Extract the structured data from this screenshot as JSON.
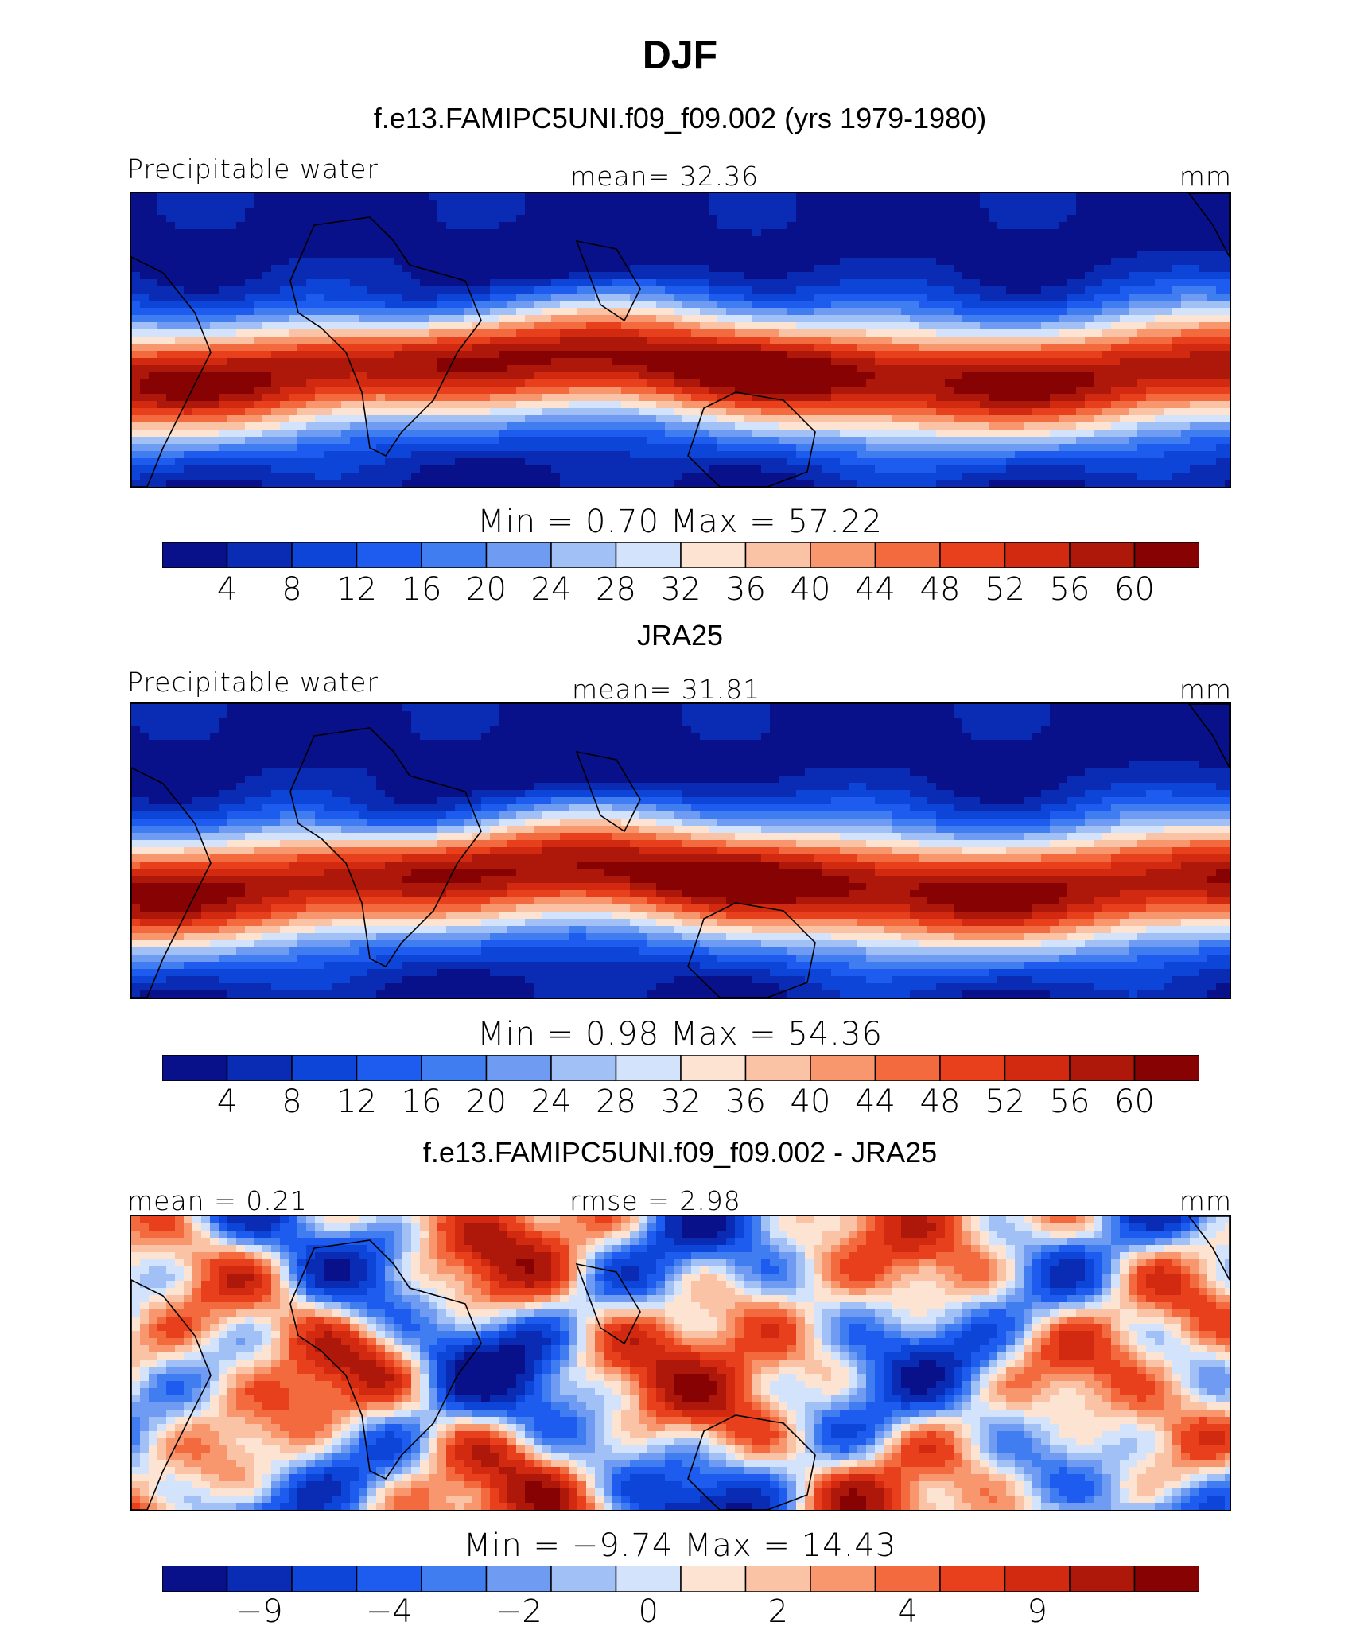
{
  "figure": {
    "title": "DJF"
  },
  "palette": [
    "#08108a",
    "#0a2cb5",
    "#0d45d8",
    "#1e5cef",
    "#3f7df1",
    "#6f9cf2",
    "#a1c0f5",
    "#d2e3fb",
    "#fde3d1",
    "#fbc3a6",
    "#f8976e",
    "#f36a3f",
    "#e8401d",
    "#d12a10",
    "#ad180a",
    "#870303"
  ],
  "panels": [
    {
      "id": "model",
      "subtitle": "f.e13.FAMIPC5UNI.f09_f09.002 (yrs 1979-1980)",
      "left_label": "Precipitable water",
      "center_label": "mean=  32.36",
      "units": "mm",
      "minmax": "Min =   0.70 Max =  57.22",
      "colorbar_ticks": [
        "4",
        "8",
        "12",
        "16",
        "20",
        "24",
        "28",
        "32",
        "36",
        "40",
        "44",
        "48",
        "52",
        "56",
        "60"
      ],
      "field_style": "abs"
    },
    {
      "id": "obs",
      "subtitle": "JRA25",
      "left_label": "Precipitable water",
      "center_label": "mean=  31.81",
      "units": "mm",
      "minmax": "Min =   0.98 Max =  54.36",
      "colorbar_ticks": [
        "4",
        "8",
        "12",
        "16",
        "20",
        "24",
        "28",
        "32",
        "36",
        "40",
        "44",
        "48",
        "52",
        "56",
        "60"
      ],
      "field_style": "abs"
    },
    {
      "id": "diff",
      "subtitle": "f.e13.FAMIPC5UNI.f09_f09.002 - JRA25",
      "left_label": "mean =   0.21",
      "center_label": "rmse =   2.98",
      "units": "mm",
      "minmax": "Min =  −9.74 Max =  14.43",
      "colorbar_ticks": [
        "−9",
        "",
        "−4",
        "",
        "−2",
        "",
        "0",
        "",
        "2",
        "",
        "4",
        "",
        "9"
      ],
      "field_style": "diff"
    }
  ]
}
